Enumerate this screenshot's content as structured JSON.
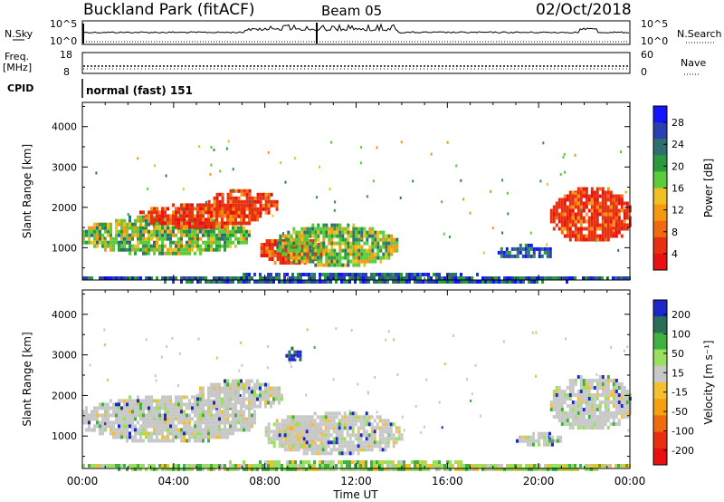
{
  "header": {
    "title": "Buckland Park (fitACF)",
    "beam": "Beam 05",
    "date": "02/Oct/2018"
  },
  "noise_panel": {
    "left_label": "N.Sky",
    "right_label": "N.Search",
    "left_top": "10^5",
    "left_bottom": "10^0",
    "right_top": "10^5",
    "right_bottom": "10^0"
  },
  "freq_panel": {
    "left_label_1": "Freq.",
    "left_label_2": "[MHz]",
    "right_label": "Nave",
    "left_top": "18",
    "left_bottom": "8",
    "right_top": "60",
    "right_bottom": "0"
  },
  "cpid_panel": {
    "label": "CPID",
    "program": "normal (fast) 151"
  },
  "chart_data": [
    {
      "type": "heatmap",
      "name": "power",
      "ylabel": "Slant Range [km]",
      "xlabel": "Time UT",
      "x_ticks": [
        "00:00",
        "04:00",
        "08:00",
        "12:00",
        "16:00",
        "20:00",
        "00:00"
      ],
      "y_ticks": [
        1000,
        2000,
        3000,
        4000
      ],
      "ylim": [
        200,
        4600
      ],
      "xlim_hours": [
        0,
        24
      ],
      "colorbar_label": "Power [dB]",
      "colorbar_ticks": [
        4,
        8,
        12,
        16,
        20,
        24,
        28
      ],
      "colorbar_colors": [
        "#1414ff",
        "#2a3fb0",
        "#2f6f6f",
        "#2a9a3c",
        "#5ccc3a",
        "#f0c020",
        "#f59a10",
        "#f06a10",
        "#e83010",
        "#e81010"
      ],
      "regions": [
        {
          "t0": 0.0,
          "t1": 7.3,
          "r0": 900,
          "r1": 1800,
          "level": "mid"
        },
        {
          "t0": 2.5,
          "t1": 7.8,
          "r0": 1550,
          "r1": 2100,
          "level": "high"
        },
        {
          "t0": 5.5,
          "t1": 8.5,
          "r0": 1800,
          "r1": 2450,
          "level": "high"
        },
        {
          "t0": 7.8,
          "t1": 10.5,
          "r0": 650,
          "r1": 1300,
          "level": "high"
        },
        {
          "t0": 8.5,
          "t1": 13.8,
          "r0": 600,
          "r1": 1600,
          "level": "mid"
        },
        {
          "t0": 18.2,
          "t1": 20.6,
          "r0": 750,
          "r1": 1100,
          "level": "low"
        },
        {
          "t0": 20.5,
          "t1": 24.0,
          "r0": 1200,
          "r1": 2500,
          "level": "high"
        },
        {
          "t0": 0.0,
          "t1": 24.0,
          "r0": 180,
          "r1": 380,
          "level": "low"
        }
      ]
    },
    {
      "type": "heatmap",
      "name": "velocity",
      "ylabel": "Slant Range [km]",
      "xlabel": "Time UT",
      "x_ticks": [
        "00:00",
        "04:00",
        "08:00",
        "12:00",
        "16:00",
        "20:00",
        "00:00"
      ],
      "y_ticks": [
        1000,
        2000,
        3000,
        4000
      ],
      "ylim": [
        200,
        4600
      ],
      "xlim_hours": [
        0,
        24
      ],
      "colorbar_label": "Velocity [m s⁻¹]",
      "colorbar_ticks": [
        200,
        100,
        50,
        15,
        -15,
        -50,
        -100,
        -200
      ],
      "colorbar_colors": [
        "#1c28c8",
        "#2a6e5a",
        "#40b040",
        "#9ae060",
        "#c8c8c8",
        "#f5c030",
        "#f5a010",
        "#f06a10",
        "#e83010",
        "#e81010"
      ],
      "regions": [
        {
          "t0": 0.0,
          "t1": 7.5,
          "r0": 900,
          "r1": 2000,
          "level": "grey"
        },
        {
          "t0": 5.0,
          "t1": 8.7,
          "r0": 1700,
          "r1": 2400,
          "level": "grey"
        },
        {
          "t0": 8.5,
          "t1": 10.5,
          "r0": 700,
          "r1": 1400,
          "level": "orange"
        },
        {
          "t0": 8.0,
          "t1": 14.0,
          "r0": 600,
          "r1": 1600,
          "level": "grey"
        },
        {
          "t0": 19.0,
          "t1": 21.0,
          "r0": 800,
          "r1": 1100,
          "level": "grey"
        },
        {
          "t0": 20.5,
          "t1": 24.0,
          "r0": 1200,
          "r1": 2500,
          "level": "grey"
        },
        {
          "t0": 0.0,
          "t1": 24.0,
          "r0": 180,
          "r1": 400,
          "level": "green"
        },
        {
          "t0": 8.9,
          "t1": 9.6,
          "r0": 2900,
          "r1": 3200,
          "level": "blue"
        }
      ]
    }
  ]
}
